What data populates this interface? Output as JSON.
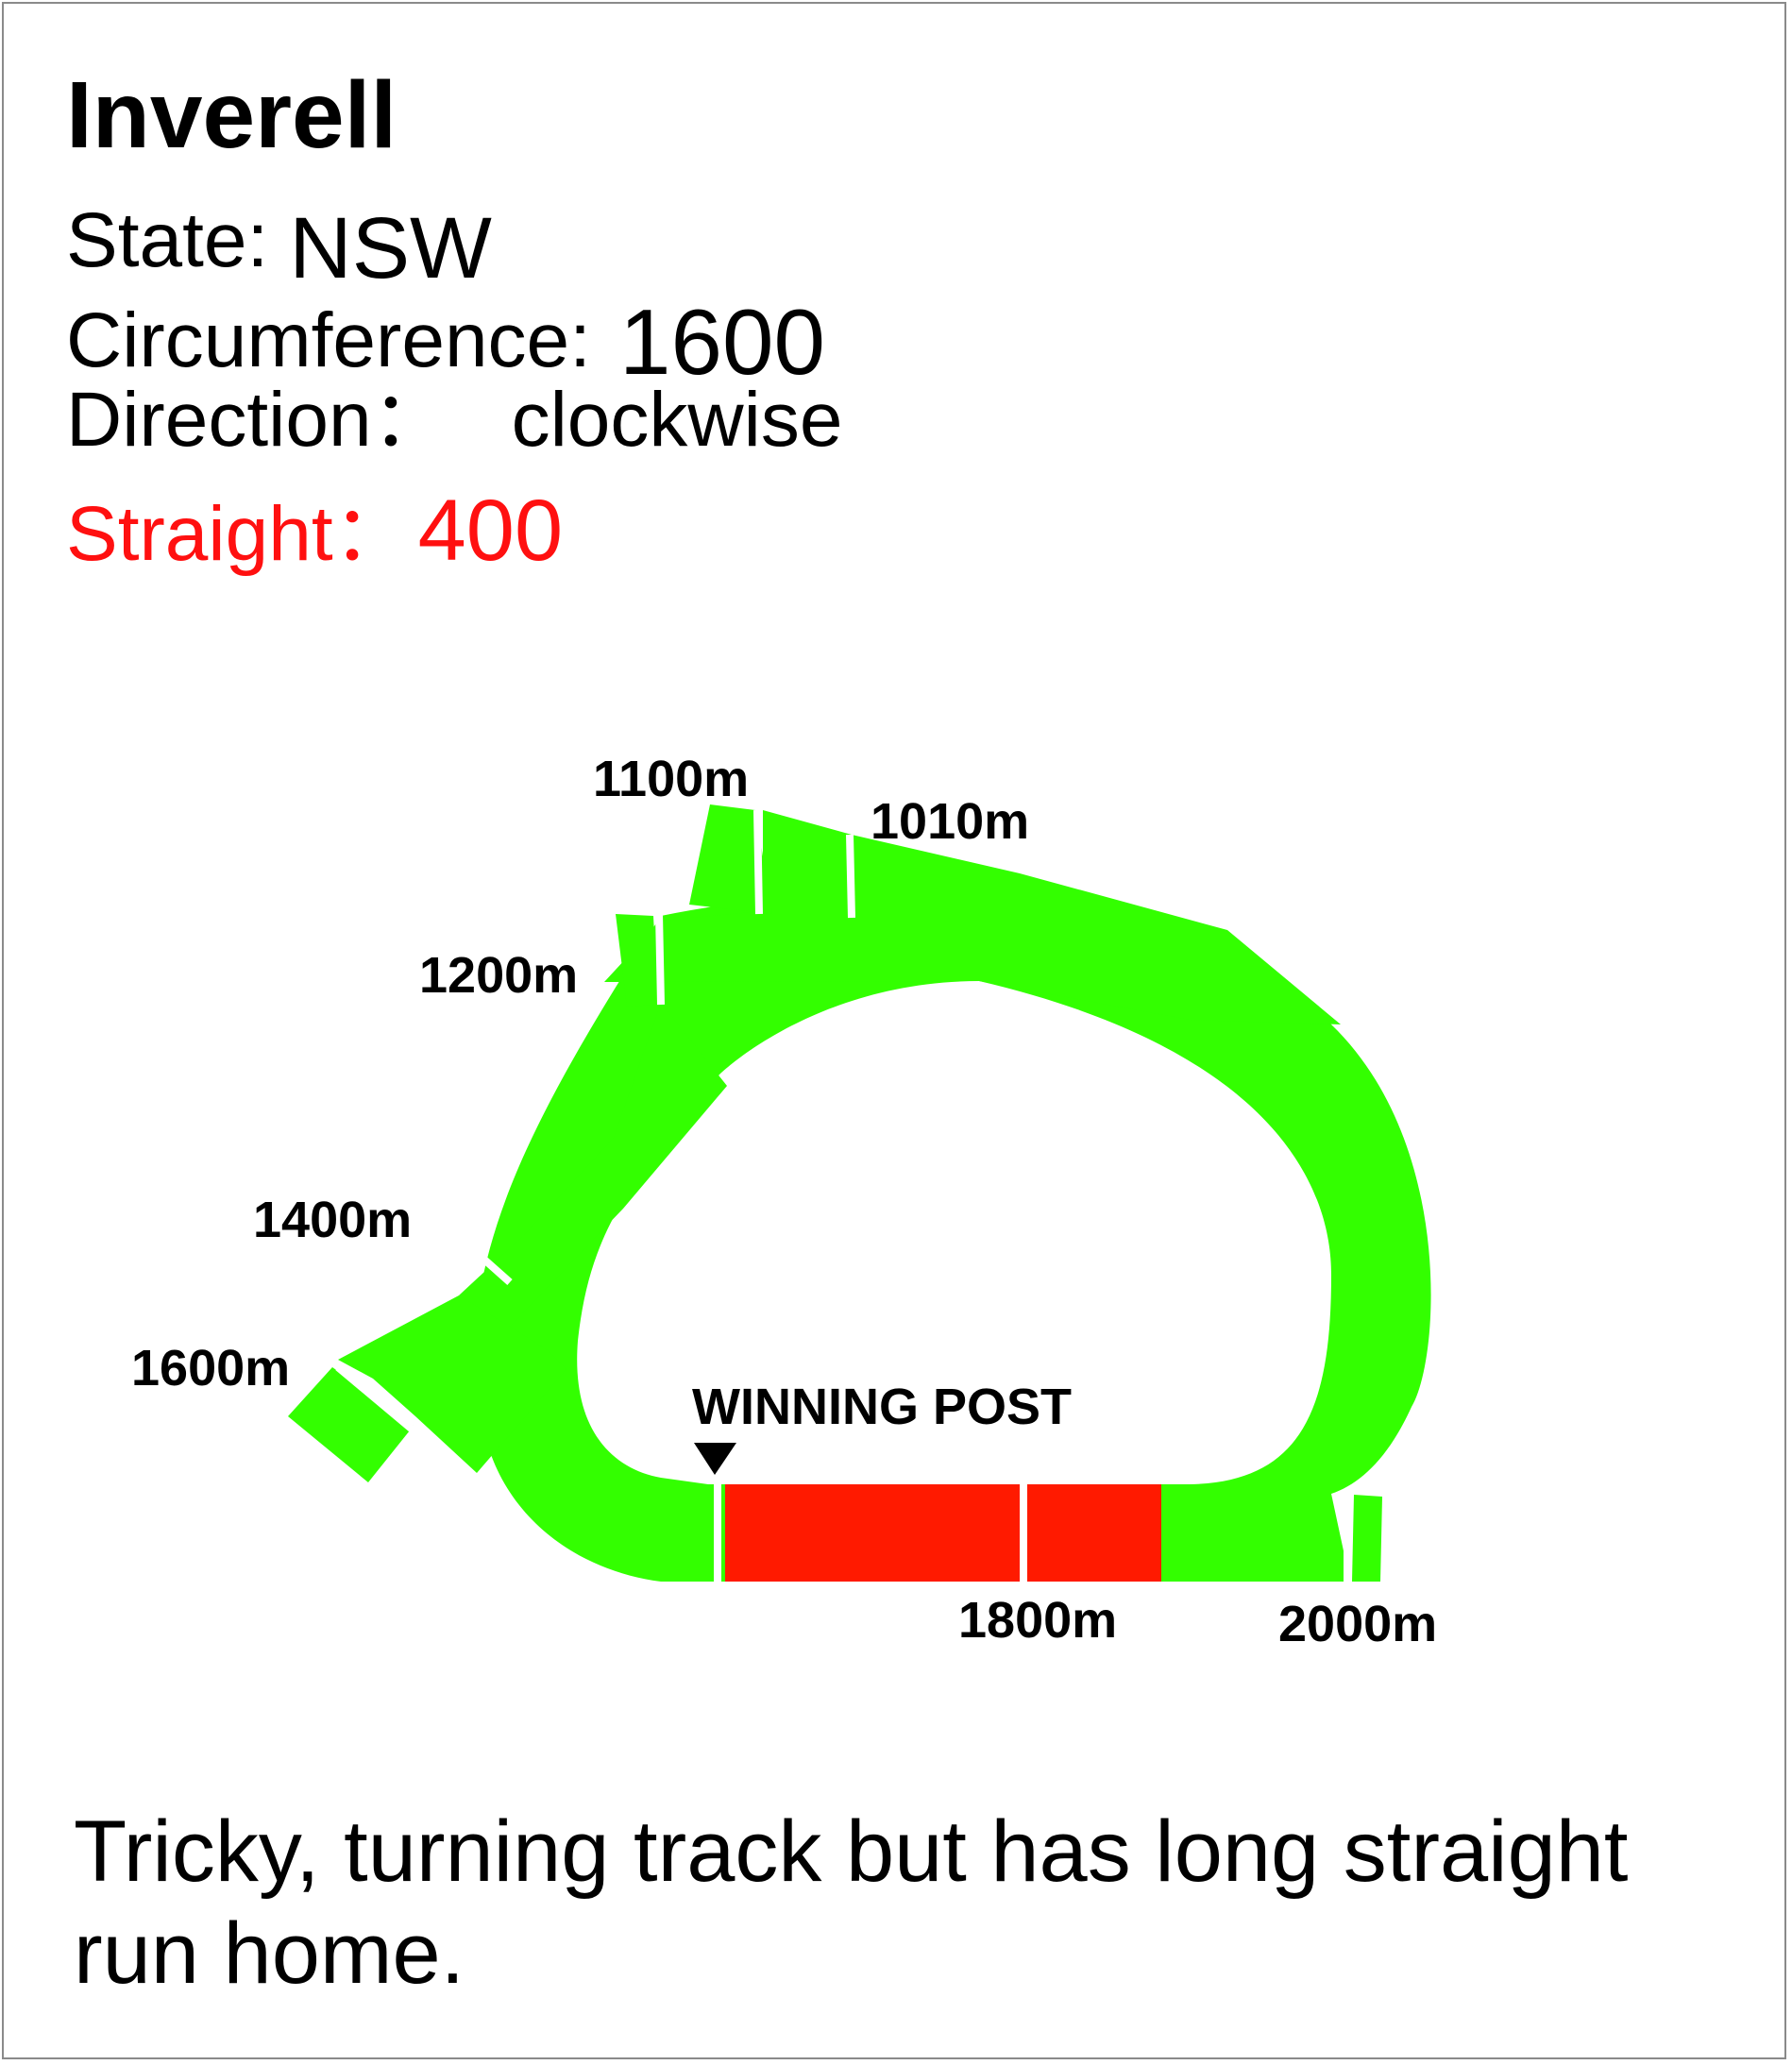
{
  "header": {
    "title": "Inverell",
    "state_label": "State:",
    "state_value": "NSW",
    "circumference_label": "Circumference:",
    "circumference_value": "1600",
    "direction_label": "Direction：",
    "direction_value": "clockwise",
    "straight_label": "Straight：",
    "straight_value": "400"
  },
  "colors": {
    "track": "#33ff00",
    "straight": "#ff1a00",
    "straight_text": "#ff1010",
    "border": "#8a8a8a"
  },
  "track_map": {
    "markers": {
      "m1100": "1100m",
      "m1010": "1010m",
      "m1200": "1200m",
      "m1400": "1400m",
      "m1600": "1600m",
      "m1800": "1800m",
      "m2000": "2000m"
    },
    "winning_post": "WINNING POST"
  },
  "description": "Tricky, turning track but has long straight run home."
}
